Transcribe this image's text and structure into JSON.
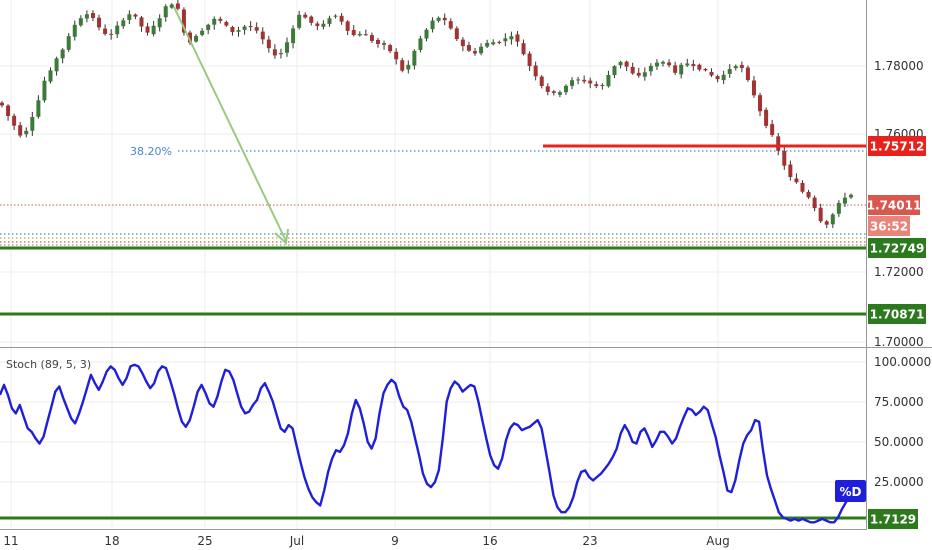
{
  "chart_data": [
    {
      "type": "candlestick",
      "x_ticks": [
        "11",
        "18",
        "25",
        "Jul",
        "9",
        "16",
        "23",
        "Aug"
      ],
      "y_ticks": [
        "1.78000",
        "1.76000",
        "1.72000",
        "1.70000"
      ],
      "ylim": [
        1.6968,
        1.7955
      ],
      "colors": {
        "up": "#3d7a3a",
        "down": "#a33232",
        "wick": "#333333"
      },
      "price_path": [
        1.7655,
        1.7625,
        1.7598,
        1.7572,
        1.7585,
        1.7625,
        1.767,
        1.7725,
        1.7752,
        1.779,
        1.7815,
        1.785,
        1.7885,
        1.7905,
        1.7915,
        1.7905,
        1.7875,
        1.786,
        1.7855,
        1.788,
        1.79,
        1.7915,
        1.7905,
        1.788,
        1.786,
        1.788,
        1.7905,
        1.7935,
        1.7945,
        1.7928,
        1.7865,
        1.7835,
        1.7855,
        1.787,
        1.7885,
        1.79,
        1.7895,
        1.788,
        1.7865,
        1.787,
        1.788,
        1.7878,
        1.7865,
        1.7842,
        1.7815,
        1.78,
        1.7805,
        1.7835,
        1.7875,
        1.7915,
        1.7905,
        1.789,
        1.788,
        1.7885,
        1.7905,
        1.791,
        1.7895,
        1.787,
        1.7855,
        1.786,
        1.7855,
        1.784,
        1.783,
        1.7825,
        1.781,
        1.7785,
        1.7755,
        1.777,
        1.781,
        1.7845,
        1.787,
        1.7895,
        1.7905,
        1.7895,
        1.7872,
        1.7845,
        1.7825,
        1.781,
        1.7805,
        1.7822,
        1.7832,
        1.7835,
        1.7838,
        1.7845,
        1.7855,
        1.7835,
        1.7802,
        1.7768,
        1.774,
        1.7712,
        1.7695,
        1.7688,
        1.7695,
        1.7712,
        1.7725,
        1.7728,
        1.7725,
        1.7718,
        1.771,
        1.7712,
        1.7742,
        1.7768,
        1.778,
        1.7765,
        1.7745,
        1.7738,
        1.775,
        1.7768,
        1.7775,
        1.7778,
        1.7772,
        1.7745,
        1.7768,
        1.7775,
        1.777,
        1.776,
        1.7752,
        1.774,
        1.773,
        1.7742,
        1.776,
        1.777,
        1.776,
        1.7725,
        1.7685,
        1.764,
        1.76,
        1.7568,
        1.7525,
        1.7485,
        1.745,
        1.7435,
        1.741,
        1.7395,
        1.7365,
        1.7328,
        1.7318,
        1.7345,
        1.7375,
        1.7395,
        1.7401
      ]
    },
    {
      "type": "line",
      "title": "Stoch (89, 5, 3)",
      "series_name": "%D",
      "y_ticks": [
        "100.0000",
        "75.0000",
        "50.0000",
        "25.0000"
      ],
      "ylim": [
        -2.0,
        106.0
      ],
      "color": "#1f1fdb",
      "values": [
        78,
        84,
        78,
        70,
        67,
        72,
        65,
        58,
        56,
        52,
        49,
        53,
        62,
        71,
        80,
        83,
        76,
        70,
        64,
        61,
        67,
        74,
        82,
        90,
        85,
        81,
        86,
        92,
        95,
        93,
        88,
        84,
        88,
        95,
        96,
        95,
        91,
        86,
        82,
        85,
        92,
        95,
        94,
        87,
        79,
        70,
        62,
        59,
        63,
        71,
        80,
        84,
        79,
        73,
        71,
        77,
        86,
        93,
        92,
        87,
        79,
        71,
        67,
        68,
        72,
        75,
        82,
        85,
        80,
        74,
        66,
        58,
        56,
        60,
        58,
        48,
        38,
        29,
        22,
        17,
        14,
        12,
        21,
        32,
        40,
        45,
        44,
        48,
        55,
        67,
        75,
        70,
        61,
        50,
        46,
        52,
        67,
        79,
        84,
        87,
        85,
        77,
        71,
        69,
        62,
        52,
        42,
        31,
        25,
        23,
        26,
        33,
        52,
        74,
        82,
        86,
        84,
        80,
        82,
        84,
        83,
        74,
        63,
        52,
        42,
        36,
        34,
        40,
        51,
        58,
        61,
        60,
        57,
        58,
        59,
        61,
        63,
        58,
        45,
        32,
        18,
        11,
        8,
        8,
        11,
        17,
        26,
        32,
        33,
        29,
        27,
        29,
        31,
        34,
        37,
        41,
        46,
        55,
        60,
        56,
        50,
        49,
        56,
        58,
        53,
        47,
        51,
        56,
        56,
        53,
        49,
        52,
        59,
        65,
        70,
        69,
        66,
        68,
        71,
        69,
        61,
        53,
        42,
        32,
        21,
        20,
        27,
        39,
        49,
        54,
        57,
        63,
        62,
        45,
        30,
        22,
        15,
        8,
        5,
        4,
        3,
        4,
        3,
        4,
        3,
        2,
        2,
        3,
        4,
        3,
        2,
        2,
        5,
        10,
        14,
        17
      ]
    }
  ],
  "price_lines": {
    "res_label": "1.75712",
    "cur_label": "1.74011",
    "timer_label": "36:52",
    "sup1_label": "1.72749",
    "sup2_label": "1.70871",
    "fib_label": "38.20%"
  },
  "stoch_labels": {
    "title": "Stoch (89, 5, 3)",
    "series_tag": "%D",
    "level_label": "1.7129"
  },
  "colors": {
    "resistance": "#e8211d",
    "support": "#2d7a1e",
    "current": "#d8584d",
    "fib": "#4a88c8",
    "arrow": "#9cc980",
    "stoch": "#1f1fdb",
    "grid": "#eeeeee"
  }
}
